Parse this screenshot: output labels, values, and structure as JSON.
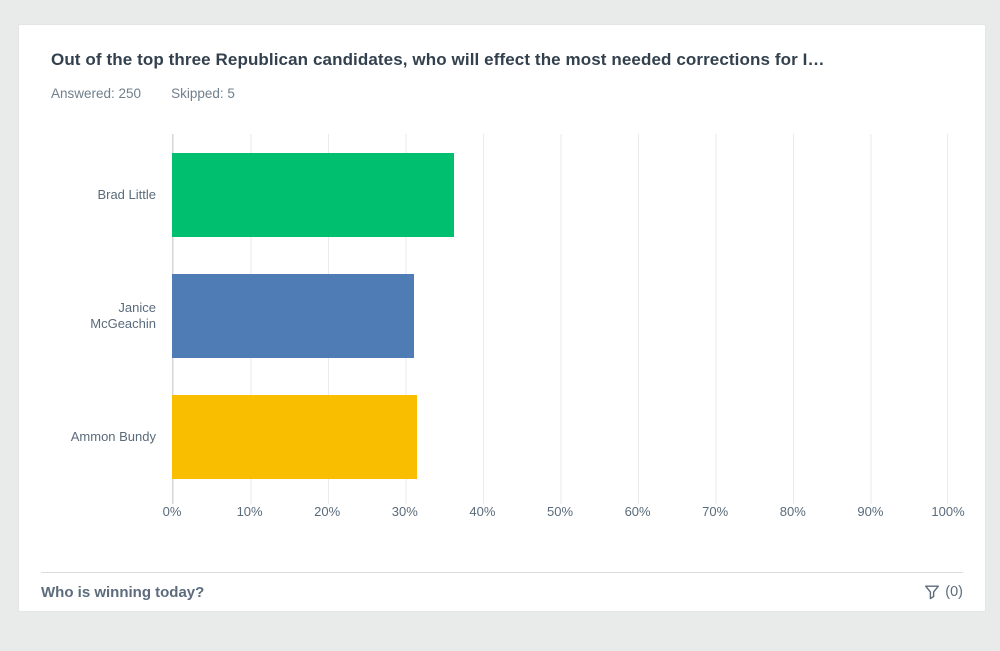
{
  "header": {
    "title": "Out of the top three Republican candidates, who will effect the most needed corrections for I…",
    "answered": "Answered: 250",
    "skipped": "Skipped: 5"
  },
  "chart_data": {
    "type": "bar",
    "orientation": "horizontal",
    "title": "Out of the top three Republican candidates, who will effect the most needed corrections for I…",
    "categories": [
      "Brad Little",
      "Janice McGeachin",
      "Ammon Bundy"
    ],
    "values": [
      36.4,
      31.2,
      31.6
    ],
    "value_unit": "percent",
    "bar_colors": [
      "#00BF6F",
      "#507CB6",
      "#F9BE00"
    ],
    "x_ticks": [
      "0%",
      "10%",
      "20%",
      "30%",
      "40%",
      "50%",
      "60%",
      "70%",
      "80%",
      "90%",
      "100%"
    ],
    "xlim": [
      0,
      100
    ],
    "xlabel": "",
    "ylabel": "",
    "grid": true,
    "legend": false
  },
  "footer": {
    "question": "Who is winning today?",
    "filter_icon": "funnel-icon",
    "filter_count": "(0)"
  }
}
